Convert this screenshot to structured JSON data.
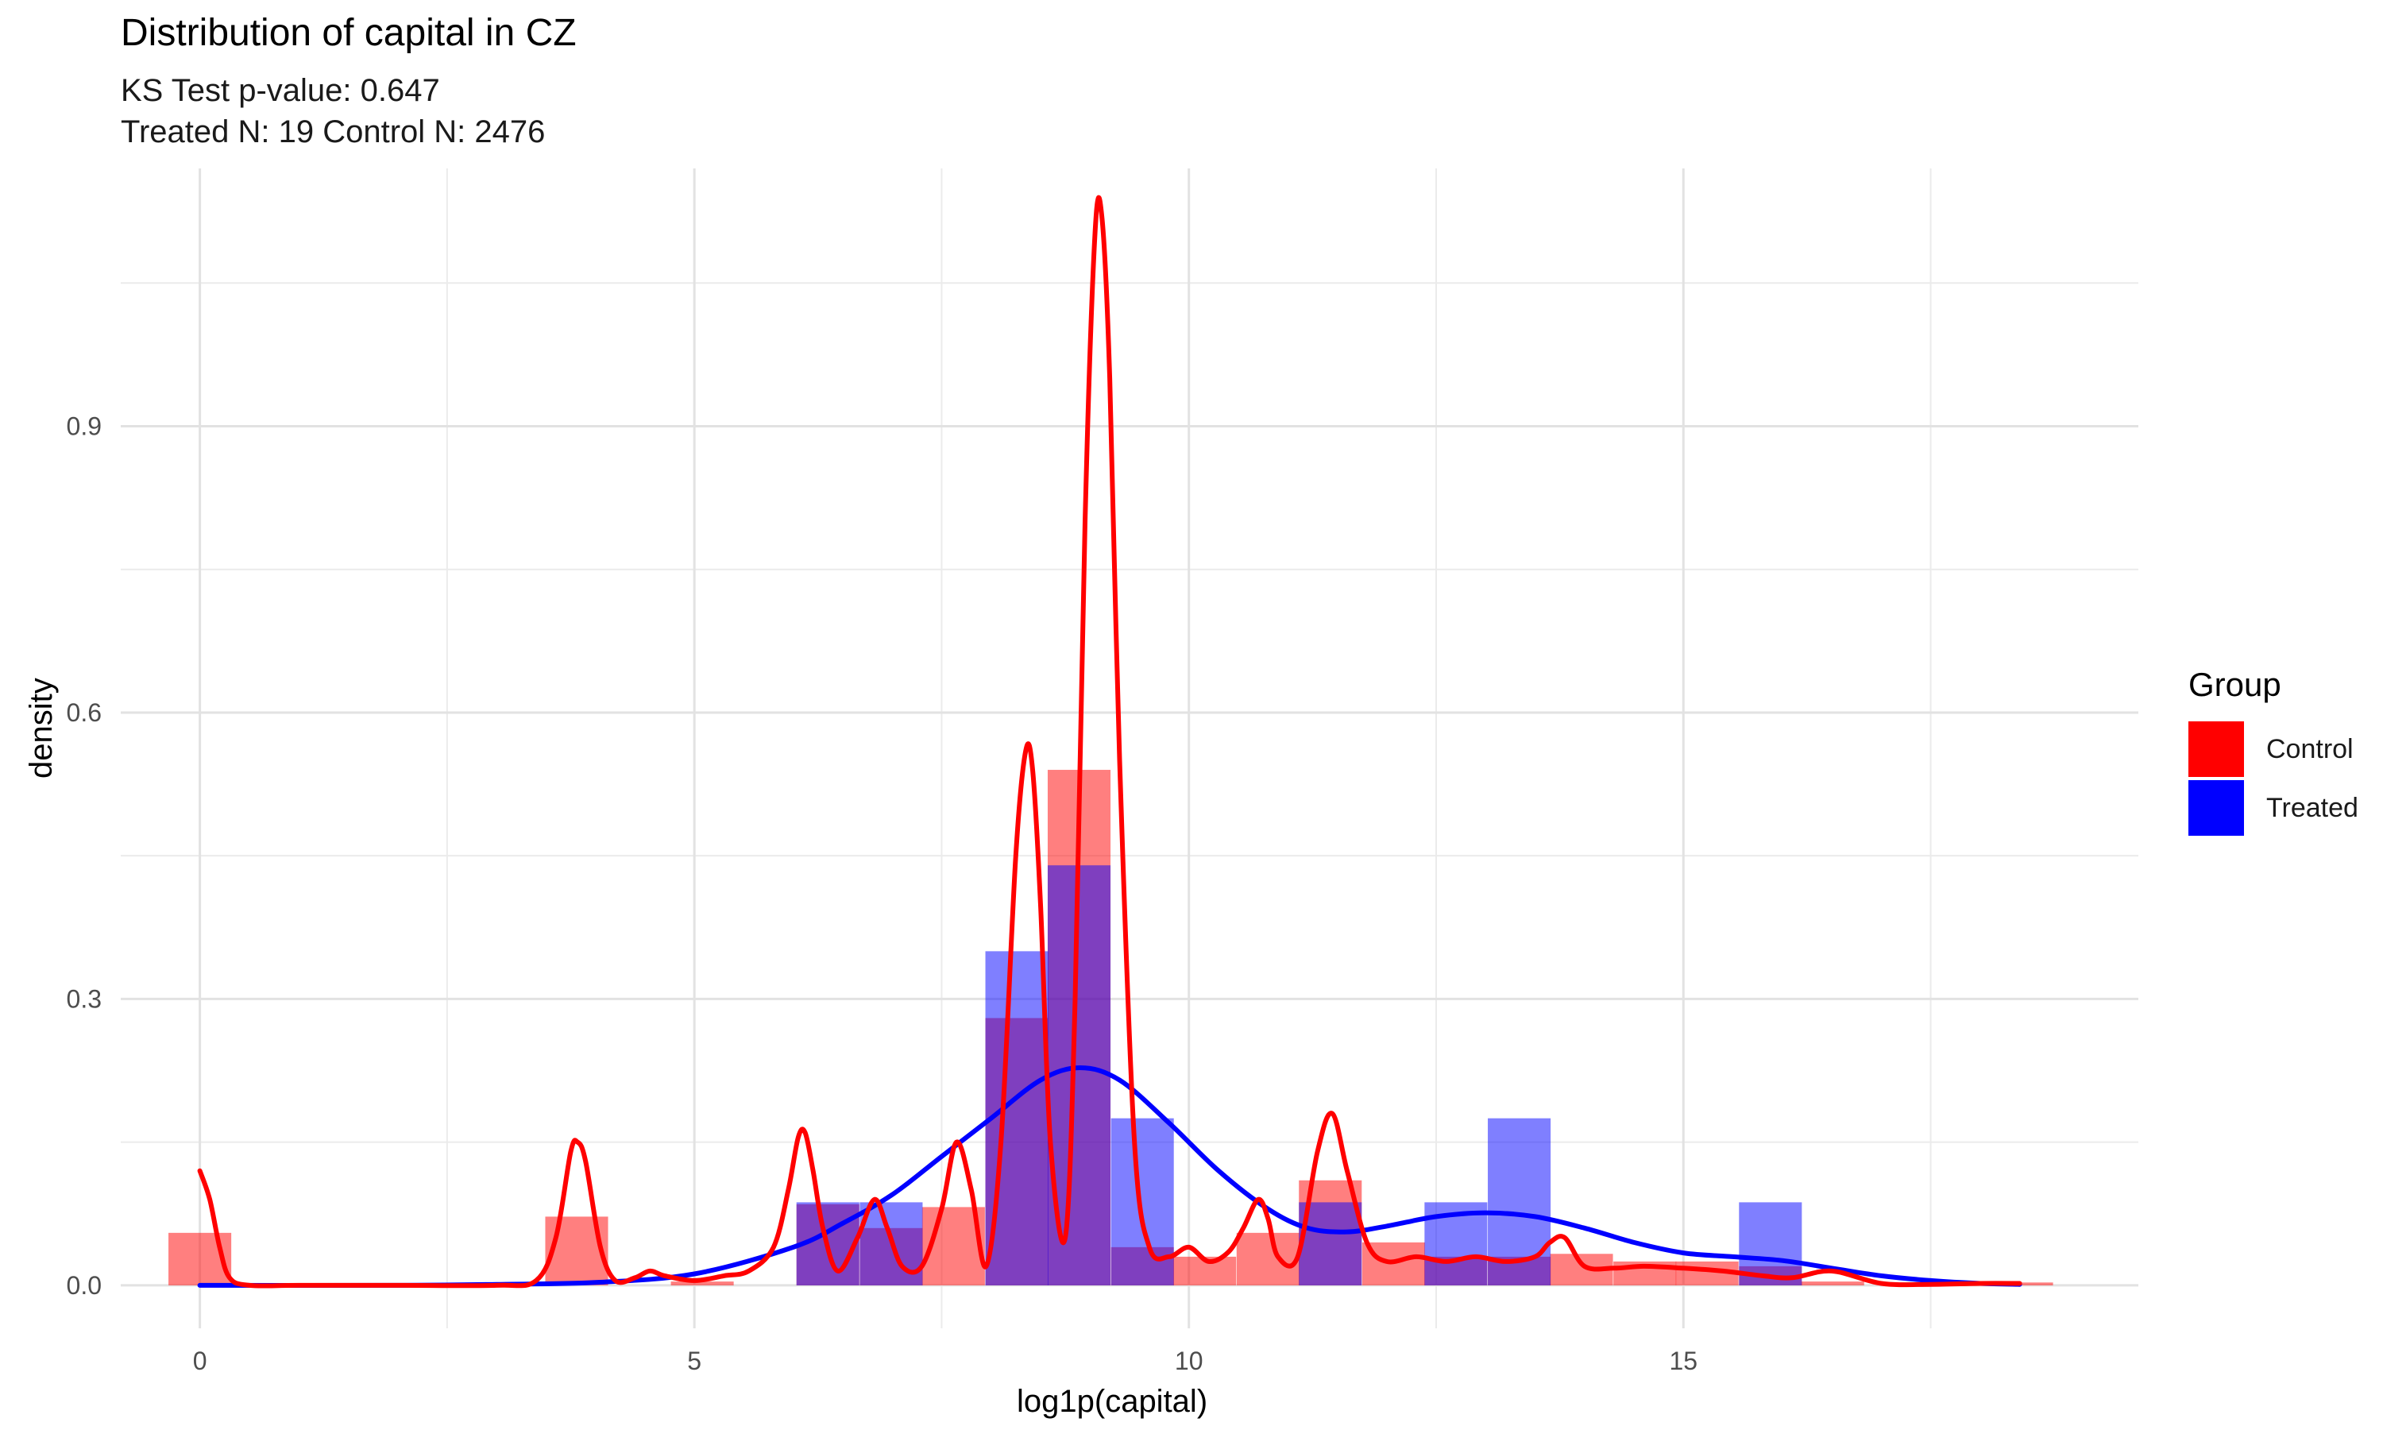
{
  "title": "Distribution of capital in CZ",
  "subtitle_lines": [
    "KS Test p-value: 0.647",
    "Treated N: 19 Control N: 2476"
  ],
  "chart_data": {
    "type": "histogram_density",
    "title": "Distribution of capital in CZ",
    "subtitle": "KS Test p-value: 0.647 / Treated N: 19 Control N: 2476",
    "xlabel": "log1p(capital)",
    "ylabel": "density",
    "xlim": [
      -0.8,
      19.6
    ],
    "ylim": [
      -0.045,
      1.17
    ],
    "x_ticks": [
      0,
      5,
      10,
      15
    ],
    "x_tick_labels": [
      "0",
      "5",
      "10",
      "15"
    ],
    "y_ticks": [
      0.0,
      0.3,
      0.6,
      0.9
    ],
    "y_tick_labels": [
      "0.0",
      "0.3",
      "0.6",
      "0.9"
    ],
    "grid": true,
    "bin_width": 0.635,
    "legend": {
      "title": "Group",
      "position": "right",
      "entries": [
        {
          "label": "Control",
          "color": "#FF0000"
        },
        {
          "label": "Treated",
          "color": "#0000FF"
        }
      ]
    },
    "series": [
      {
        "name": "Control",
        "color": "#FF0000",
        "histogram": {
          "bin_centers": [
            0.0,
            3.81,
            5.08,
            6.35,
            6.99,
            7.62,
            8.26,
            8.89,
            9.53,
            10.16,
            10.8,
            11.43,
            12.07,
            12.7,
            13.34,
            13.97,
            14.61,
            15.24,
            15.88,
            16.51,
            17.78,
            18.42
          ],
          "values": [
            0.055,
            0.072,
            0.004,
            0.085,
            0.06,
            0.082,
            0.28,
            0.54,
            0.04,
            0.03,
            0.055,
            0.11,
            0.045,
            0.03,
            0.03,
            0.033,
            0.025,
            0.025,
            0.02,
            0.004,
            0.003,
            0.003
          ]
        },
        "density": {
          "x": [
            0.0,
            0.1,
            0.2,
            0.3,
            0.5,
            1.0,
            2.0,
            3.0,
            3.4,
            3.6,
            3.75,
            3.82,
            3.9,
            4.05,
            4.2,
            4.4,
            4.55,
            4.7,
            5.0,
            5.3,
            5.55,
            5.8,
            5.95,
            6.05,
            6.12,
            6.2,
            6.3,
            6.45,
            6.65,
            6.82,
            6.95,
            7.1,
            7.3,
            7.5,
            7.65,
            7.8,
            7.95,
            8.1,
            8.25,
            8.35,
            8.42,
            8.5,
            8.6,
            8.75,
            8.85,
            8.95,
            9.05,
            9.12,
            9.2,
            9.3,
            9.45,
            9.6,
            9.8,
            10.0,
            10.2,
            10.4,
            10.55,
            10.7,
            10.8,
            10.9,
            11.1,
            11.3,
            11.45,
            11.6,
            11.8,
            12.0,
            12.3,
            12.6,
            12.9,
            13.2,
            13.5,
            13.65,
            13.8,
            14.0,
            14.3,
            14.6,
            15.0,
            15.4,
            15.8,
            16.1,
            16.5,
            17.0,
            17.5,
            18.0,
            18.4
          ],
          "y": [
            0.12,
            0.09,
            0.04,
            0.008,
            0.0,
            0.0,
            0.0,
            0.0,
            0.005,
            0.05,
            0.14,
            0.15,
            0.13,
            0.04,
            0.005,
            0.008,
            0.015,
            0.01,
            0.005,
            0.01,
            0.015,
            0.04,
            0.1,
            0.155,
            0.16,
            0.12,
            0.06,
            0.015,
            0.05,
            0.09,
            0.06,
            0.02,
            0.02,
            0.08,
            0.15,
            0.1,
            0.02,
            0.15,
            0.45,
            0.56,
            0.54,
            0.4,
            0.15,
            0.05,
            0.3,
            0.8,
            1.1,
            1.12,
            0.95,
            0.55,
            0.15,
            0.04,
            0.03,
            0.04,
            0.025,
            0.035,
            0.06,
            0.09,
            0.07,
            0.03,
            0.03,
            0.14,
            0.18,
            0.12,
            0.045,
            0.025,
            0.03,
            0.025,
            0.03,
            0.025,
            0.03,
            0.045,
            0.05,
            0.02,
            0.018,
            0.02,
            0.018,
            0.015,
            0.01,
            0.008,
            0.015,
            0.002,
            0.001,
            0.002,
            0.002
          ]
        }
      },
      {
        "name": "Treated",
        "color": "#0000FF",
        "histogram": {
          "bin_centers": [
            6.35,
            6.99,
            8.26,
            8.89,
            9.53,
            11.43,
            12.7,
            13.34,
            15.88
          ],
          "values": [
            0.087,
            0.087,
            0.35,
            0.44,
            0.175,
            0.087,
            0.087,
            0.175,
            0.087
          ]
        },
        "density": {
          "x": [
            0.0,
            2.0,
            3.0,
            4.0,
            5.0,
            6.0,
            6.5,
            7.0,
            7.5,
            8.0,
            8.5,
            8.9,
            9.3,
            9.8,
            10.3,
            10.8,
            11.2,
            11.6,
            12.0,
            12.5,
            13.0,
            13.5,
            14.0,
            14.5,
            15.0,
            15.5,
            16.0,
            16.5,
            17.0,
            17.5,
            18.0,
            18.4
          ],
          "y": [
            0.0,
            0.0,
            0.001,
            0.003,
            0.012,
            0.04,
            0.065,
            0.095,
            0.135,
            0.175,
            0.215,
            0.228,
            0.215,
            0.17,
            0.12,
            0.08,
            0.06,
            0.056,
            0.062,
            0.072,
            0.076,
            0.072,
            0.06,
            0.045,
            0.034,
            0.03,
            0.026,
            0.018,
            0.01,
            0.005,
            0.002,
            0.001
          ]
        }
      }
    ]
  }
}
